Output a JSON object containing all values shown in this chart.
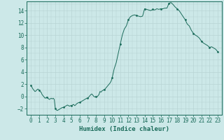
{
  "title": "",
  "xlabel": "Humidex (Indice chaleur)",
  "xlim": [
    -0.5,
    23.5
  ],
  "ylim": [
    -3,
    15.5
  ],
  "yticks": [
    -2,
    0,
    2,
    4,
    6,
    8,
    10,
    12,
    14
  ],
  "xticks": [
    0,
    1,
    2,
    3,
    4,
    5,
    6,
    7,
    8,
    9,
    10,
    11,
    12,
    13,
    14,
    15,
    16,
    17,
    18,
    19,
    20,
    21,
    22,
    23
  ],
  "line_color": "#1a6b5a",
  "marker_color": "#1a6b5a",
  "bg_color": "#cce8e8",
  "grid_major_color": "#b8d4d4",
  "x": [
    0,
    0.125,
    0.25,
    0.375,
    0.5,
    0.625,
    0.75,
    0.875,
    1.0,
    1.125,
    1.25,
    1.375,
    1.5,
    1.625,
    1.75,
    1.875,
    2.0,
    2.125,
    2.25,
    2.375,
    2.5,
    2.625,
    2.75,
    2.875,
    3.0,
    3.125,
    3.25,
    3.375,
    3.5,
    3.625,
    3.75,
    3.875,
    4.0,
    4.125,
    4.25,
    4.375,
    4.5,
    4.625,
    4.75,
    4.875,
    5.0,
    5.125,
    5.25,
    5.375,
    5.5,
    5.625,
    5.75,
    5.875,
    6.0,
    6.125,
    6.25,
    6.375,
    6.5,
    6.625,
    6.75,
    6.875,
    7.0,
    7.125,
    7.25,
    7.375,
    7.5,
    7.625,
    7.75,
    7.875,
    8.0,
    8.125,
    8.25,
    8.375,
    8.5,
    8.625,
    8.75,
    8.875,
    9.0,
    9.125,
    9.25,
    9.375,
    9.5,
    9.625,
    9.75,
    9.875,
    10.0,
    10.25,
    10.5,
    10.75,
    11.0,
    11.25,
    11.5,
    11.75,
    12.0,
    12.25,
    12.5,
    12.75,
    13.0,
    13.25,
    13.5,
    13.75,
    14.0,
    14.25,
    14.5,
    14.75,
    15.0,
    15.25,
    15.5,
    15.75,
    16.0,
    16.25,
    16.5,
    16.75,
    17.0,
    17.25,
    17.5,
    17.75,
    18.0,
    18.25,
    18.5,
    18.75,
    19.0,
    19.25,
    19.5,
    19.75,
    20.0,
    20.25,
    20.5,
    20.75,
    21.0,
    21.25,
    21.5,
    21.75,
    22.0,
    22.25,
    22.5,
    22.75,
    23.0
  ],
  "y": [
    1.8,
    1.5,
    1.2,
    1.0,
    0.8,
    0.9,
    1.1,
    1.2,
    1.0,
    0.8,
    0.7,
    0.3,
    0.1,
    -0.1,
    -0.3,
    -0.2,
    -0.1,
    -0.3,
    -0.5,
    -0.4,
    -0.3,
    -0.4,
    -0.3,
    -0.5,
    -2.0,
    -2.2,
    -2.3,
    -2.2,
    -2.1,
    -2.0,
    -1.9,
    -1.8,
    -1.8,
    -1.7,
    -1.6,
    -1.5,
    -1.4,
    -1.5,
    -1.6,
    -1.5,
    -1.5,
    -1.4,
    -1.3,
    -1.5,
    -1.4,
    -1.2,
    -1.1,
    -1.0,
    -1.0,
    -0.9,
    -0.8,
    -0.7,
    -0.6,
    -0.5,
    -0.4,
    -0.3,
    -0.3,
    -0.1,
    0.1,
    0.3,
    0.4,
    0.2,
    0.0,
    -0.1,
    0.0,
    -0.1,
    0.1,
    0.3,
    0.8,
    0.7,
    0.9,
    1.0,
    1.1,
    1.2,
    1.4,
    1.6,
    1.8,
    2.0,
    2.2,
    2.5,
    3.0,
    4.5,
    5.5,
    7.0,
    8.5,
    10.0,
    11.0,
    11.5,
    12.5,
    13.0,
    13.2,
    13.3,
    13.2,
    13.1,
    13.0,
    13.1,
    14.3,
    14.2,
    14.1,
    14.0,
    14.2,
    14.1,
    14.3,
    14.2,
    14.3,
    14.3,
    14.4,
    14.4,
    15.2,
    15.3,
    15.0,
    14.6,
    14.3,
    14.0,
    13.5,
    13.0,
    12.5,
    11.8,
    11.5,
    10.8,
    10.3,
    10.0,
    9.8,
    9.5,
    9.0,
    8.7,
    8.5,
    8.3,
    8.0,
    8.1,
    7.9,
    7.7,
    7.3
  ],
  "marker_x": [
    0,
    1,
    2,
    3,
    4,
    5,
    6,
    7,
    8,
    9,
    10,
    11,
    12,
    13,
    14,
    15,
    16,
    17,
    18,
    19,
    20,
    21,
    22,
    23
  ],
  "marker_y": [
    1.8,
    1.0,
    -0.1,
    -2.0,
    -1.8,
    -1.5,
    -1.0,
    -0.3,
    0.0,
    1.1,
    3.0,
    8.5,
    12.5,
    13.2,
    14.3,
    14.2,
    14.3,
    15.2,
    14.3,
    12.5,
    10.3,
    9.0,
    8.0,
    7.3
  ]
}
